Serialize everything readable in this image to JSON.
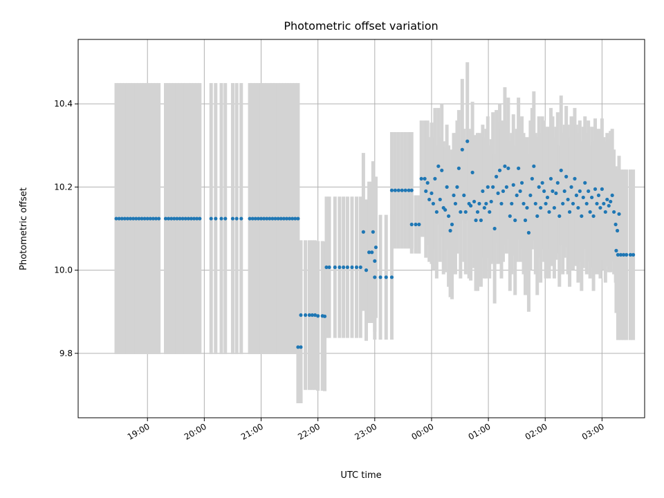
{
  "chart_data": {
    "type": "scatter",
    "title": "Photometric offset variation",
    "xlabel": "UTC time",
    "ylabel": "Photometric offset",
    "x_unit": "hours UTC (values beyond 24 continue past midnight)",
    "xlim": [
      17.78,
      27.75
    ],
    "ylim": [
      9.645,
      10.555
    ],
    "grid": true,
    "x_ticks": [
      {
        "value": 19,
        "label": "19:00"
      },
      {
        "value": 20,
        "label": "20:00"
      },
      {
        "value": 21,
        "label": "21:00"
      },
      {
        "value": 22,
        "label": "22:00"
      },
      {
        "value": 23,
        "label": "23:00"
      },
      {
        "value": 24,
        "label": "00:00"
      },
      {
        "value": 25,
        "label": "01:00"
      },
      {
        "value": 26,
        "label": "02:00"
      },
      {
        "value": 27,
        "label": "03:00"
      }
    ],
    "y_ticks": [
      {
        "value": 9.8,
        "label": "9.8"
      },
      {
        "value": 10.0,
        "label": "10.0"
      },
      {
        "value": 10.2,
        "label": "10.2"
      },
      {
        "value": 10.4,
        "label": "10.4"
      }
    ],
    "colors": {
      "points": "#1f77b4",
      "error_bars": "#d3d3d3",
      "grid": "#b0b0b0"
    },
    "series": [
      {
        "points": [
          [
            18.45,
            10.124,
            0.326
          ],
          [
            18.5,
            10.124,
            0.326
          ],
          [
            18.55,
            10.124,
            0.326
          ],
          [
            18.6,
            10.124,
            0.326
          ],
          [
            18.65,
            10.124,
            0.326
          ],
          [
            18.7,
            10.124,
            0.326
          ],
          [
            18.75,
            10.124,
            0.326
          ],
          [
            18.8,
            10.124,
            0.326
          ],
          [
            18.85,
            10.124,
            0.326
          ],
          [
            18.9,
            10.124,
            0.326
          ],
          [
            18.95,
            10.124,
            0.326
          ],
          [
            19.0,
            10.124,
            0.326
          ],
          [
            19.05,
            10.124,
            0.326
          ],
          [
            19.1,
            10.124,
            0.326
          ],
          [
            19.15,
            10.124,
            0.326
          ],
          [
            19.2,
            10.124,
            0.326
          ],
          [
            19.32,
            10.124,
            0.326
          ],
          [
            19.37,
            10.124,
            0.326
          ],
          [
            19.42,
            10.124,
            0.326
          ],
          [
            19.47,
            10.124,
            0.326
          ],
          [
            19.52,
            10.124,
            0.326
          ],
          [
            19.57,
            10.124,
            0.326
          ],
          [
            19.62,
            10.124,
            0.326
          ],
          [
            19.67,
            10.124,
            0.326
          ],
          [
            19.72,
            10.124,
            0.326
          ],
          [
            19.77,
            10.124,
            0.326
          ],
          [
            19.82,
            10.124,
            0.326
          ],
          [
            19.87,
            10.124,
            0.326
          ],
          [
            19.92,
            10.124,
            0.326
          ],
          [
            20.12,
            10.124,
            0.326
          ],
          [
            20.2,
            10.124,
            0.326
          ],
          [
            20.3,
            10.124,
            0.326
          ],
          [
            20.37,
            10.124,
            0.326
          ],
          [
            20.5,
            10.124,
            0.326
          ],
          [
            20.57,
            10.124,
            0.326
          ],
          [
            20.65,
            10.124,
            0.326
          ],
          [
            20.8,
            10.124,
            0.326
          ],
          [
            20.85,
            10.124,
            0.326
          ],
          [
            20.9,
            10.124,
            0.326
          ],
          [
            20.95,
            10.124,
            0.326
          ],
          [
            21.0,
            10.124,
            0.326
          ],
          [
            21.05,
            10.124,
            0.326
          ],
          [
            21.1,
            10.124,
            0.326
          ],
          [
            21.15,
            10.124,
            0.326
          ],
          [
            21.2,
            10.124,
            0.326
          ],
          [
            21.25,
            10.124,
            0.326
          ],
          [
            21.3,
            10.124,
            0.326
          ],
          [
            21.35,
            10.124,
            0.326
          ],
          [
            21.4,
            10.124,
            0.326
          ],
          [
            21.45,
            10.124,
            0.326
          ],
          [
            21.5,
            10.124,
            0.326
          ],
          [
            21.55,
            10.124,
            0.326
          ],
          [
            21.6,
            10.124,
            0.326
          ],
          [
            21.65,
            10.124,
            0.326
          ],
          [
            21.65,
            9.815,
            0.135
          ],
          [
            21.7,
            9.815,
            0.135
          ],
          [
            21.7,
            9.892,
            0.18
          ],
          [
            21.78,
            9.892,
            0.18
          ],
          [
            21.85,
            9.892,
            0.18
          ],
          [
            21.9,
            9.892,
            0.18
          ],
          [
            21.95,
            9.892,
            0.18
          ],
          [
            22.0,
            9.89,
            0.18
          ],
          [
            22.08,
            9.89,
            0.18
          ],
          [
            22.12,
            9.889,
            0.18
          ],
          [
            22.15,
            10.007,
            0.17
          ],
          [
            22.2,
            10.007,
            0.17
          ],
          [
            22.3,
            10.007,
            0.17
          ],
          [
            22.38,
            10.007,
            0.17
          ],
          [
            22.45,
            10.007,
            0.17
          ],
          [
            22.52,
            10.007,
            0.17
          ],
          [
            22.6,
            10.007,
            0.17
          ],
          [
            22.68,
            10.007,
            0.17
          ],
          [
            22.75,
            10.007,
            0.17
          ],
          [
            22.8,
            10.092,
            0.19
          ],
          [
            22.85,
            10.0,
            0.17
          ],
          [
            22.9,
            10.043,
            0.17
          ],
          [
            22.95,
            10.043,
            0.17
          ],
          [
            22.97,
            10.092,
            0.17
          ],
          [
            23.0,
            10.022,
            0.17
          ],
          [
            23.02,
            10.055,
            0.17
          ],
          [
            23.0,
            9.983,
            0.15
          ],
          [
            23.1,
            9.983,
            0.15
          ],
          [
            23.2,
            9.983,
            0.15
          ],
          [
            23.3,
            9.983,
            0.15
          ],
          [
            23.3,
            10.192,
            0.14
          ],
          [
            23.36,
            10.192,
            0.14
          ],
          [
            23.42,
            10.192,
            0.14
          ],
          [
            23.48,
            10.192,
            0.14
          ],
          [
            23.54,
            10.192,
            0.14
          ],
          [
            23.6,
            10.192,
            0.14
          ],
          [
            23.65,
            10.192,
            0.14
          ],
          [
            23.65,
            10.11,
            0.07
          ],
          [
            23.72,
            10.11,
            0.07
          ],
          [
            23.78,
            10.11,
            0.07
          ],
          [
            23.82,
            10.22,
            0.14
          ],
          [
            23.88,
            10.22,
            0.14
          ],
          [
            23.9,
            10.19,
            0.16
          ],
          [
            23.93,
            10.21,
            0.15
          ],
          [
            23.96,
            10.17,
            0.15
          ],
          [
            24.0,
            10.185,
            0.17
          ],
          [
            24.03,
            10.16,
            0.16
          ],
          [
            24.06,
            10.22,
            0.17
          ],
          [
            24.09,
            10.14,
            0.16
          ],
          [
            24.12,
            10.25,
            0.14
          ],
          [
            24.15,
            10.17,
            0.15
          ],
          [
            24.18,
            10.24,
            0.16
          ],
          [
            24.21,
            10.15,
            0.16
          ],
          [
            24.24,
            10.145,
            0.15
          ],
          [
            24.27,
            10.2,
            0.15
          ],
          [
            24.3,
            10.13,
            0.17
          ],
          [
            24.33,
            10.095,
            0.16
          ],
          [
            24.36,
            10.11,
            0.18
          ],
          [
            24.39,
            10.18,
            0.15
          ],
          [
            24.42,
            10.16,
            0.17
          ],
          [
            24.45,
            10.2,
            0.16
          ],
          [
            24.48,
            10.245,
            0.14
          ],
          [
            24.51,
            10.14,
            0.16
          ],
          [
            24.54,
            10.29,
            0.17
          ],
          [
            24.57,
            10.18,
            0.16
          ],
          [
            24.6,
            10.14,
            0.15
          ],
          [
            24.63,
            10.31,
            0.19
          ],
          [
            24.66,
            10.16,
            0.18
          ],
          [
            24.69,
            10.155,
            0.18
          ],
          [
            24.72,
            10.235,
            0.17
          ],
          [
            24.75,
            10.165,
            0.16
          ],
          [
            24.78,
            10.12,
            0.17
          ],
          [
            24.81,
            10.14,
            0.19
          ],
          [
            24.84,
            10.16,
            0.17
          ],
          [
            24.87,
            10.12,
            0.16
          ],
          [
            24.9,
            10.19,
            0.16
          ],
          [
            24.93,
            10.15,
            0.17
          ],
          [
            24.96,
            10.16,
            0.18
          ],
          [
            24.99,
            10.2,
            0.17
          ],
          [
            25.02,
            10.14,
            0.16
          ],
          [
            25.05,
            10.165,
            0.15
          ],
          [
            25.08,
            10.2,
            0.18
          ],
          [
            25.11,
            10.1,
            0.18
          ],
          [
            25.14,
            10.225,
            0.16
          ],
          [
            25.17,
            10.185,
            0.17
          ],
          [
            25.2,
            10.24,
            0.16
          ],
          [
            25.23,
            10.16,
            0.18
          ],
          [
            25.26,
            10.19,
            0.17
          ],
          [
            25.29,
            10.25,
            0.19
          ],
          [
            25.32,
            10.2,
            0.16
          ],
          [
            25.35,
            10.245,
            0.17
          ],
          [
            25.38,
            10.13,
            0.18
          ],
          [
            25.41,
            10.16,
            0.17
          ],
          [
            25.44,
            10.205,
            0.17
          ],
          [
            25.47,
            10.12,
            0.18
          ],
          [
            25.5,
            10.18,
            0.16
          ],
          [
            25.53,
            10.245,
            0.17
          ],
          [
            25.56,
            10.19,
            0.17
          ],
          [
            25.59,
            10.21,
            0.16
          ],
          [
            25.62,
            10.16,
            0.17
          ],
          [
            25.65,
            10.12,
            0.18
          ],
          [
            25.68,
            10.15,
            0.17
          ],
          [
            25.71,
            10.09,
            0.19
          ],
          [
            25.74,
            10.18,
            0.18
          ],
          [
            25.77,
            10.22,
            0.17
          ],
          [
            25.8,
            10.25,
            0.18
          ],
          [
            25.83,
            10.16,
            0.17
          ],
          [
            25.86,
            10.13,
            0.19
          ],
          [
            25.89,
            10.2,
            0.17
          ],
          [
            25.92,
            10.15,
            0.18
          ],
          [
            25.95,
            10.21,
            0.16
          ],
          [
            25.98,
            10.19,
            0.17
          ],
          [
            26.01,
            10.16,
            0.18
          ],
          [
            26.04,
            10.175,
            0.17
          ],
          [
            26.07,
            10.14,
            0.16
          ],
          [
            26.1,
            10.22,
            0.17
          ],
          [
            26.13,
            10.19,
            0.18
          ],
          [
            26.16,
            10.15,
            0.17
          ],
          [
            26.19,
            10.185,
            0.16
          ],
          [
            26.22,
            10.21,
            0.17
          ],
          [
            26.25,
            10.13,
            0.17
          ],
          [
            26.28,
            10.24,
            0.18
          ],
          [
            26.31,
            10.16,
            0.17
          ],
          [
            26.34,
            10.19,
            0.16
          ],
          [
            26.37,
            10.225,
            0.17
          ],
          [
            26.4,
            10.17,
            0.18
          ],
          [
            26.43,
            10.14,
            0.18
          ],
          [
            26.46,
            10.2,
            0.17
          ],
          [
            26.49,
            10.16,
            0.16
          ],
          [
            26.52,
            10.22,
            0.17
          ],
          [
            26.55,
            10.18,
            0.17
          ],
          [
            26.58,
            10.15,
            0.18
          ],
          [
            26.61,
            10.19,
            0.17
          ],
          [
            26.64,
            10.13,
            0.18
          ],
          [
            26.67,
            10.175,
            0.17
          ],
          [
            26.7,
            10.21,
            0.16
          ],
          [
            26.73,
            10.16,
            0.17
          ],
          [
            26.76,
            10.19,
            0.17
          ],
          [
            26.79,
            10.14,
            0.16
          ],
          [
            26.82,
            10.175,
            0.17
          ],
          [
            26.85,
            10.13,
            0.18
          ],
          [
            26.88,
            10.195,
            0.17
          ],
          [
            26.91,
            10.16,
            0.17
          ],
          [
            26.94,
            10.18,
            0.16
          ],
          [
            26.97,
            10.15,
            0.17
          ],
          [
            27.0,
            10.195,
            0.17
          ],
          [
            27.03,
            10.16,
            0.16
          ],
          [
            27.06,
            10.14,
            0.17
          ],
          [
            27.09,
            10.17,
            0.16
          ],
          [
            27.12,
            10.155,
            0.16
          ],
          [
            27.15,
            10.165,
            0.17
          ],
          [
            27.18,
            10.18,
            0.16
          ],
          [
            27.21,
            10.14,
            0.15
          ],
          [
            27.24,
            10.11,
            0.14
          ],
          [
            27.27,
            10.095,
            0.13
          ],
          [
            27.3,
            10.135,
            0.14
          ],
          [
            27.25,
            10.047,
            0.15
          ],
          [
            27.28,
            10.037,
            0.205
          ],
          [
            27.33,
            10.037,
            0.205
          ],
          [
            27.38,
            10.037,
            0.205
          ],
          [
            27.43,
            10.037,
            0.205
          ],
          [
            27.5,
            10.037,
            0.205
          ],
          [
            27.55,
            10.037,
            0.205
          ]
        ]
      }
    ]
  }
}
